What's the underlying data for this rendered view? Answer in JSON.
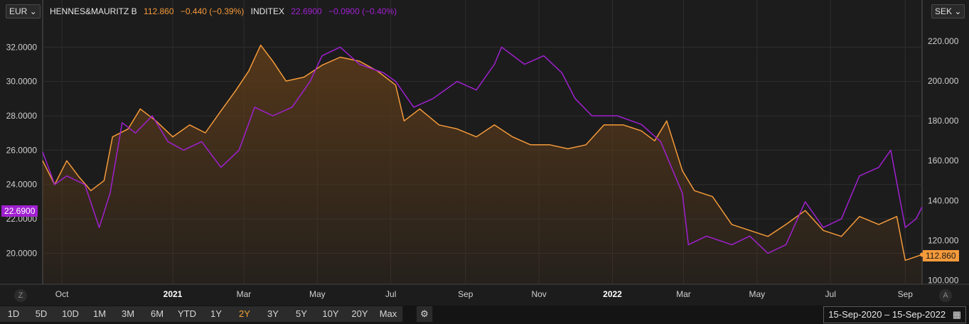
{
  "left_currency": "EUR",
  "right_currency": "SEK",
  "legend": {
    "s1_name": "HENNES&MAURITZ B",
    "s1_value": "112.860",
    "s1_change": "−0.440 (−0.39%)",
    "s2_name": "INDITEX",
    "s2_value": "22.6900",
    "s2_change": "−0.0900 (−0.40%)"
  },
  "colors": {
    "hm": "#f59a3a",
    "inditex": "#a020d0",
    "hm_fill_top": "#5a3a1a",
    "grid": "#2e2e2e"
  },
  "left_badge": "22.6900",
  "right_badge": "112.860",
  "zoom_left": "Z",
  "zoom_right": "A",
  "periods": [
    "1D",
    "5D",
    "10D",
    "1M",
    "3M",
    "6M",
    "YTD",
    "1Y",
    "2Y",
    "3Y",
    "5Y",
    "10Y",
    "20Y",
    "Max"
  ],
  "active_period": "2Y",
  "settings_icon": "gear-icon",
  "date_range": "15-Sep-2020  –  15-Sep-2022",
  "calendar_icon": "calendar-icon",
  "chart_data": {
    "type": "line",
    "x_range": [
      "2020-09-15",
      "2022-09-15"
    ],
    "x_ticks": [
      {
        "date": "2020-10-01",
        "label": "Oct"
      },
      {
        "date": "2021-01-01",
        "label": "2021"
      },
      {
        "date": "2021-03-01",
        "label": "Mar"
      },
      {
        "date": "2021-05-01",
        "label": "May"
      },
      {
        "date": "2021-07-01",
        "label": "Jul"
      },
      {
        "date": "2021-09-01",
        "label": "Sep"
      },
      {
        "date": "2021-11-01",
        "label": "Nov"
      },
      {
        "date": "2022-01-01",
        "label": "2022"
      },
      {
        "date": "2022-03-01",
        "label": "Mar"
      },
      {
        "date": "2022-05-01",
        "label": "May"
      },
      {
        "date": "2022-07-01",
        "label": "Jul"
      },
      {
        "date": "2022-09-01",
        "label": "Sep"
      }
    ],
    "left_axis": {
      "currency": "EUR",
      "range": [
        18.2,
        33.5
      ],
      "ticks": [
        "20.0000",
        "22.0000",
        "24.0000",
        "26.0000",
        "28.0000",
        "30.0000",
        "32.0000"
      ]
    },
    "right_axis": {
      "currency": "SEK",
      "range": [
        98,
        230
      ],
      "ticks": [
        "100.000",
        "120.000",
        "140.000",
        "160.000",
        "180.000",
        "200.000",
        "220.000"
      ]
    },
    "grid": true,
    "series": [
      {
        "name": "HENNES&MAURITZ B",
        "axis": "right",
        "area": true,
        "points": [
          [
            "2020-09-15",
            160
          ],
          [
            "2020-09-25",
            148
          ],
          [
            "2020-10-05",
            160
          ],
          [
            "2020-10-15",
            152
          ],
          [
            "2020-10-25",
            145
          ],
          [
            "2020-11-05",
            150
          ],
          [
            "2020-11-12",
            172
          ],
          [
            "2020-11-25",
            176
          ],
          [
            "2020-12-05",
            186
          ],
          [
            "2020-12-18",
            180
          ],
          [
            "2021-01-01",
            172
          ],
          [
            "2021-01-15",
            178
          ],
          [
            "2021-01-28",
            174
          ],
          [
            "2021-02-10",
            185
          ],
          [
            "2021-02-22",
            195
          ],
          [
            "2021-03-05",
            205
          ],
          [
            "2021-03-15",
            218
          ],
          [
            "2021-03-25",
            210
          ],
          [
            "2021-04-05",
            200
          ],
          [
            "2021-04-20",
            202
          ],
          [
            "2021-05-05",
            208
          ],
          [
            "2021-05-20",
            212
          ],
          [
            "2021-06-05",
            210
          ],
          [
            "2021-06-20",
            205
          ],
          [
            "2021-07-05",
            198
          ],
          [
            "2021-07-12",
            180
          ],
          [
            "2021-07-25",
            186
          ],
          [
            "2021-08-10",
            178
          ],
          [
            "2021-08-25",
            176
          ],
          [
            "2021-09-10",
            172
          ],
          [
            "2021-09-25",
            178
          ],
          [
            "2021-10-10",
            172
          ],
          [
            "2021-10-25",
            168
          ],
          [
            "2021-11-10",
            168
          ],
          [
            "2021-11-25",
            166
          ],
          [
            "2021-12-10",
            168
          ],
          [
            "2021-12-25",
            178
          ],
          [
            "2022-01-10",
            178
          ],
          [
            "2022-01-25",
            175
          ],
          [
            "2022-02-05",
            170
          ],
          [
            "2022-02-15",
            180
          ],
          [
            "2022-02-28",
            155
          ],
          [
            "2022-03-10",
            145
          ],
          [
            "2022-03-25",
            142
          ],
          [
            "2022-04-10",
            128
          ],
          [
            "2022-04-25",
            125
          ],
          [
            "2022-05-10",
            122
          ],
          [
            "2022-05-25",
            128
          ],
          [
            "2022-06-10",
            135
          ],
          [
            "2022-06-25",
            125
          ],
          [
            "2022-07-10",
            122
          ],
          [
            "2022-07-25",
            132
          ],
          [
            "2022-08-10",
            128
          ],
          [
            "2022-08-25",
            132
          ],
          [
            "2022-09-01",
            110
          ],
          [
            "2022-09-15",
            112.86
          ]
        ]
      },
      {
        "name": "INDITEX",
        "axis": "left",
        "area": false,
        "points": [
          [
            "2020-09-15",
            25.9
          ],
          [
            "2020-09-25",
            24.0
          ],
          [
            "2020-10-05",
            24.5
          ],
          [
            "2020-10-20",
            24.0
          ],
          [
            "2020-11-01",
            21.5
          ],
          [
            "2020-11-10",
            23.5
          ],
          [
            "2020-11-20",
            27.6
          ],
          [
            "2020-12-01",
            27.0
          ],
          [
            "2020-12-15",
            28.0
          ],
          [
            "2020-12-28",
            26.5
          ],
          [
            "2021-01-10",
            26.0
          ],
          [
            "2021-01-25",
            26.5
          ],
          [
            "2021-02-10",
            25.0
          ],
          [
            "2021-02-25",
            26.0
          ],
          [
            "2021-03-10",
            28.5
          ],
          [
            "2021-03-25",
            28.0
          ],
          [
            "2021-04-10",
            28.5
          ],
          [
            "2021-04-25",
            30.0
          ],
          [
            "2021-05-05",
            31.5
          ],
          [
            "2021-05-20",
            32.0
          ],
          [
            "2021-06-05",
            31.0
          ],
          [
            "2021-06-25",
            30.5
          ],
          [
            "2021-07-05",
            30.0
          ],
          [
            "2021-07-20",
            28.5
          ],
          [
            "2021-08-05",
            29.0
          ],
          [
            "2021-08-25",
            30.0
          ],
          [
            "2021-09-10",
            29.5
          ],
          [
            "2021-09-25",
            31.0
          ],
          [
            "2021-10-01",
            32.0
          ],
          [
            "2021-10-20",
            31.0
          ],
          [
            "2021-11-05",
            31.5
          ],
          [
            "2021-11-20",
            30.5
          ],
          [
            "2021-12-01",
            29.0
          ],
          [
            "2021-12-15",
            28.0
          ],
          [
            "2022-01-05",
            28.0
          ],
          [
            "2022-01-25",
            27.5
          ],
          [
            "2022-02-10",
            26.5
          ],
          [
            "2022-02-28",
            23.5
          ],
          [
            "2022-03-05",
            20.5
          ],
          [
            "2022-03-20",
            21.0
          ],
          [
            "2022-04-10",
            20.5
          ],
          [
            "2022-04-25",
            21.0
          ],
          [
            "2022-05-10",
            20.0
          ],
          [
            "2022-05-25",
            20.5
          ],
          [
            "2022-06-10",
            23.0
          ],
          [
            "2022-06-25",
            21.5
          ],
          [
            "2022-07-10",
            22.0
          ],
          [
            "2022-07-25",
            24.5
          ],
          [
            "2022-08-10",
            25.0
          ],
          [
            "2022-08-20",
            26.0
          ],
          [
            "2022-09-01",
            21.5
          ],
          [
            "2022-09-10",
            22.0
          ],
          [
            "2022-09-15",
            22.69
          ]
        ]
      }
    ]
  }
}
